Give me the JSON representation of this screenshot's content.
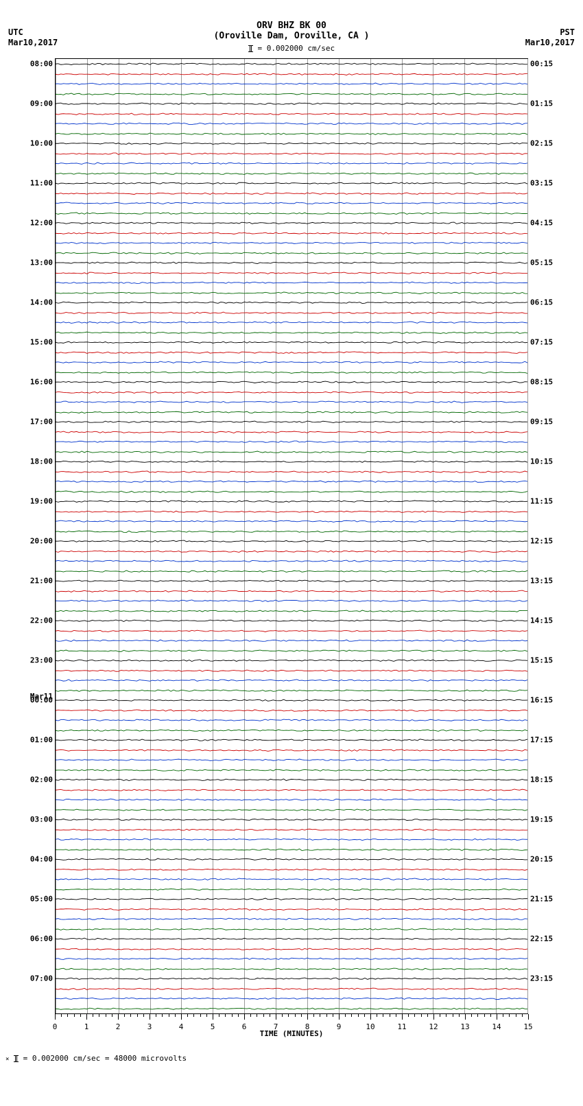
{
  "title_line1": "ORV BHZ BK 00",
  "title_line2": "(Oroville Dam, Oroville, CA )",
  "scale_text": "= 0.002000 cm/sec",
  "tz_left": "UTC",
  "tz_right": "PST",
  "date_left": "Mar10,2017",
  "date_right": "Mar10,2017",
  "day_break_label": "Mar11",
  "day_break_index": 64,
  "x_axis_label": "TIME (MINUTES)",
  "footer_text": "= 0.002000 cm/sec =   48000 microvolts",
  "x_ticks": [
    0,
    1,
    2,
    3,
    4,
    5,
    6,
    7,
    8,
    9,
    10,
    11,
    12,
    13,
    14,
    15
  ],
  "n_traces": 96,
  "trace_colors": [
    "#000000",
    "#cc0000",
    "#0033cc",
    "#006600"
  ],
  "left_hour_start": 8,
  "right_start_hour": 0,
  "right_start_min": 15,
  "grid_color": "#999999",
  "trace_amplitude": 2.2,
  "background": "#ffffff",
  "plot_total_minutes": 15
}
